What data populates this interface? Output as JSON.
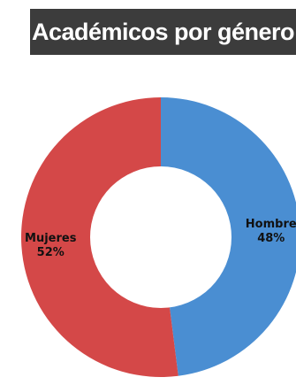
{
  "chart_data": {
    "type": "pie",
    "title": "Académicos por género",
    "variant": "donut",
    "slices": [
      {
        "label": "Hombre",
        "value": 48,
        "value_label": "48%",
        "color": "#4a8ed2"
      },
      {
        "label": "Mujeres",
        "value": 52,
        "value_label": "52%",
        "color": "#d44848"
      }
    ],
    "start_angle_deg": 0,
    "direction": "clockwise",
    "legend": "none"
  }
}
